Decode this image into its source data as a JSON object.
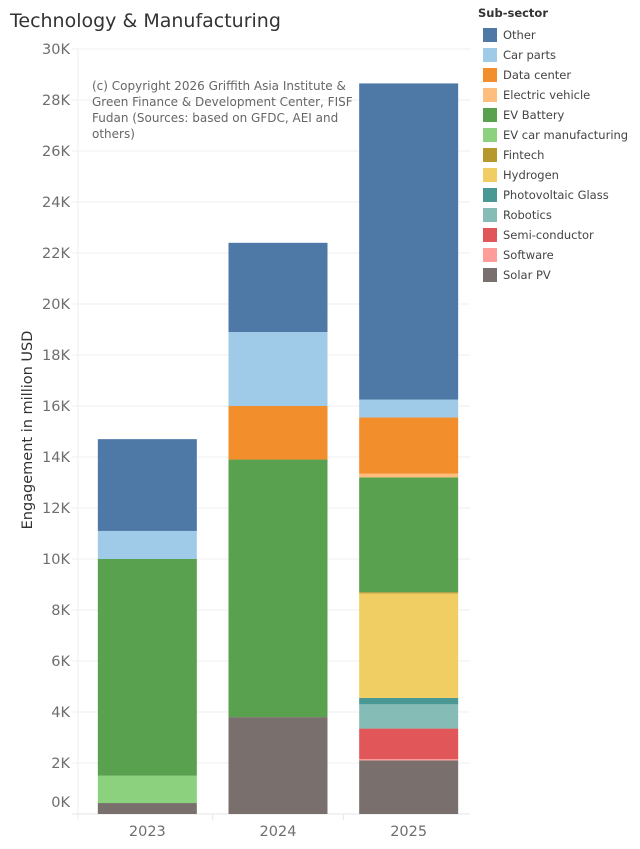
{
  "title": "Technology & Manufacturing",
  "annotation": "(c) Copyright 2026 Griffith Asia Institute & Green Finance & Development Center, FISF Fudan (Sources: based on GFDC, AEI and others)",
  "legend": {
    "title": "Sub-sector",
    "items": [
      {
        "label": "Other",
        "color": "#4e79a7"
      },
      {
        "label": "Car parts",
        "color": "#a0cbe8"
      },
      {
        "label": "Data center",
        "color": "#f28e2b"
      },
      {
        "label": "Electric vehicle",
        "color": "#ffbe7d"
      },
      {
        "label": "EV Battery",
        "color": "#59a14f"
      },
      {
        "label": "EV car manufacturing",
        "color": "#8cd17d"
      },
      {
        "label": "Fintech",
        "color": "#b6992d"
      },
      {
        "label": "Hydrogen",
        "color": "#f1ce63"
      },
      {
        "label": "Photovoltaic Glass",
        "color": "#499894"
      },
      {
        "label": "Robotics",
        "color": "#86bcb6"
      },
      {
        "label": "Semi-conductor",
        "color": "#e15759"
      },
      {
        "label": "Software",
        "color": "#ff9d9a"
      },
      {
        "label": "Solar PV",
        "color": "#79706e"
      }
    ]
  },
  "chart_data": {
    "type": "bar",
    "stacked": true,
    "title": "Technology & Manufacturing",
    "xlabel": "",
    "ylabel": "Engagement in million USD",
    "ylim": [
      0,
      30000
    ],
    "yticks": [
      0,
      2000,
      4000,
      6000,
      8000,
      10000,
      12000,
      14000,
      16000,
      18000,
      20000,
      22000,
      24000,
      26000,
      28000,
      30000
    ],
    "ytick_labels": [
      "0K",
      "2K",
      "4K",
      "6K",
      "8K",
      "10K",
      "12K",
      "14K",
      "16K",
      "18K",
      "20K",
      "22K",
      "24K",
      "26K",
      "28K",
      "30K"
    ],
    "grid": true,
    "legend_position": "right",
    "categories": [
      "2023",
      "2024",
      "2025"
    ],
    "stack_order_bottom_to_top": [
      "Solar PV",
      "Software",
      "Semi-conductor",
      "Robotics",
      "Photovoltaic Glass",
      "Hydrogen",
      "Fintech",
      "EV car manufacturing",
      "EV Battery",
      "Electric vehicle",
      "Data center",
      "Car parts",
      "Other"
    ],
    "series": [
      {
        "name": "Other",
        "values": [
          3600,
          3500,
          12400
        ]
      },
      {
        "name": "Car parts",
        "values": [
          1100,
          2900,
          700
        ]
      },
      {
        "name": "Data center",
        "values": [
          0,
          2100,
          2200
        ]
      },
      {
        "name": "Electric vehicle",
        "values": [
          0,
          0,
          150
        ]
      },
      {
        "name": "EV Battery",
        "values": [
          8500,
          10100,
          4500
        ]
      },
      {
        "name": "EV car manufacturing",
        "values": [
          1070,
          0,
          0
        ]
      },
      {
        "name": "Fintech",
        "values": [
          0,
          0,
          50
        ]
      },
      {
        "name": "Hydrogen",
        "values": [
          0,
          0,
          4100
        ]
      },
      {
        "name": "Photovoltaic Glass",
        "values": [
          0,
          0,
          250
        ]
      },
      {
        "name": "Robotics",
        "values": [
          0,
          0,
          950
        ]
      },
      {
        "name": "Semi-conductor",
        "values": [
          0,
          0,
          1200
        ]
      },
      {
        "name": "Software",
        "values": [
          0,
          0,
          50
        ]
      },
      {
        "name": "Solar PV",
        "values": [
          430,
          3800,
          2100
        ]
      }
    ]
  }
}
